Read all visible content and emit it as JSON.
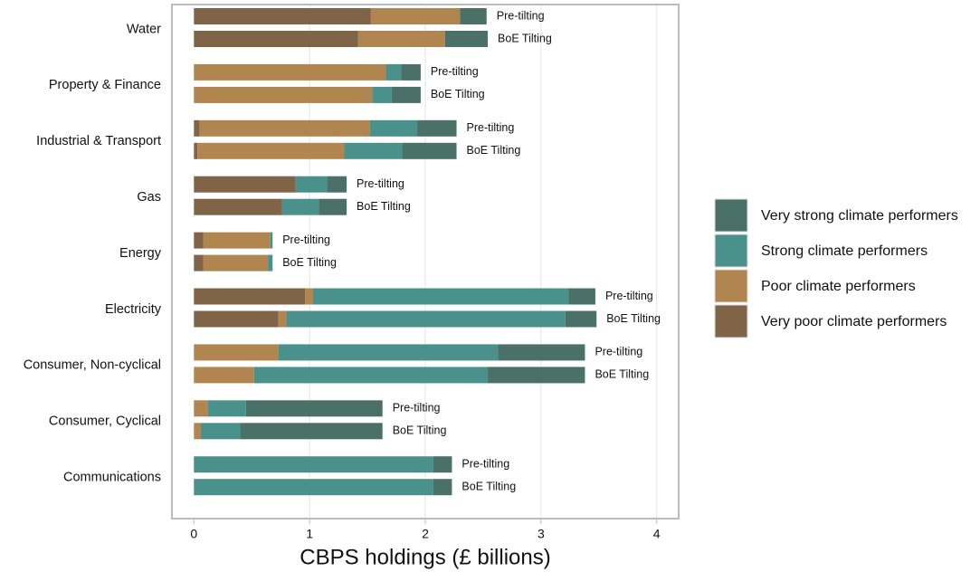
{
  "chart_data": {
    "type": "stacked-barh",
    "xlabel": "CBPS holdings (£ billions)",
    "categories": [
      "Water",
      "Property & Finance",
      "Industrial & Transport",
      "Gas",
      "Energy",
      "Electricity",
      "Consumer, Non-cyclical",
      "Consumer, Cyclical",
      "Communications"
    ],
    "groups": [
      "Pre-tilting",
      "BoE Tilting"
    ],
    "series": [
      {
        "name": "Very poor climate performers",
        "color": "#7f6447",
        "values": [
          [
            1.53,
            1.42
          ],
          [
            0,
            0
          ],
          [
            0.05,
            0.03
          ],
          [
            0.88,
            0.76
          ],
          [
            0.08,
            0.08
          ],
          [
            0.96,
            0.73
          ],
          [
            0,
            0
          ],
          [
            0,
            0
          ],
          [
            0,
            0
          ]
        ]
      },
      {
        "name": "Poor climate performers",
        "color": "#b0854f",
        "values": [
          [
            0.77,
            0.75
          ],
          [
            1.66,
            1.54
          ],
          [
            1.47,
            1.27
          ],
          [
            0,
            0
          ],
          [
            0.58,
            0.56
          ],
          [
            0.07,
            0.07
          ],
          [
            0.73,
            0.52
          ],
          [
            0.12,
            0.06
          ],
          [
            0,
            0
          ]
        ]
      },
      {
        "name": "Strong climate performers",
        "color": "#4a918b",
        "values": [
          [
            0,
            0
          ],
          [
            0.13,
            0.17
          ],
          [
            0.41,
            0.5
          ],
          [
            0.27,
            0.32
          ],
          [
            0.02,
            0.04
          ],
          [
            2.21,
            2.41
          ],
          [
            1.9,
            2.02
          ],
          [
            0.33,
            0.34
          ],
          [
            2.07,
            2.07
          ]
        ]
      },
      {
        "name": "Very strong climate performers",
        "color": "#4a7068",
        "values": [
          [
            0.23,
            0.37
          ],
          [
            0.17,
            0.25
          ],
          [
            0.34,
            0.47
          ],
          [
            0.17,
            0.24
          ],
          [
            0,
            0
          ],
          [
            0.23,
            0.27
          ],
          [
            0.75,
            0.84
          ],
          [
            1.18,
            1.23
          ],
          [
            0.16,
            0.16
          ]
        ]
      }
    ],
    "xlim": [
      -0.19,
      4.19
    ],
    "xticks": [
      0,
      1,
      2,
      3,
      4
    ],
    "grid": true,
    "legend": "right"
  }
}
